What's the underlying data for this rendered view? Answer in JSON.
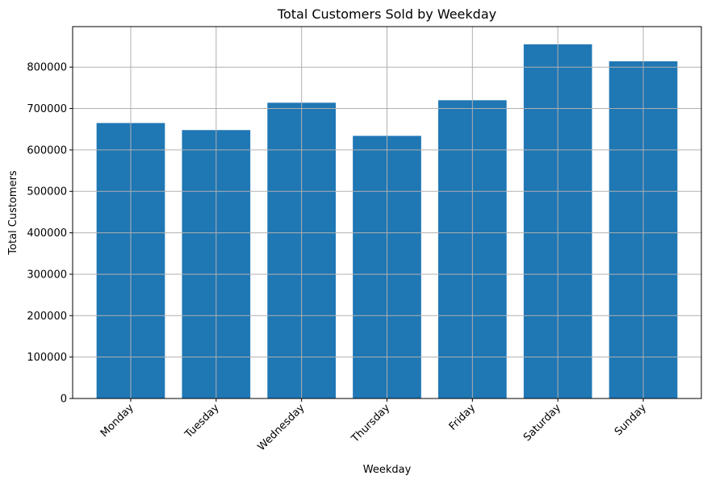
{
  "chart_data": {
    "type": "bar",
    "title": "Total Customers Sold by Weekday",
    "xlabel": "Weekday",
    "ylabel": "Total Customers",
    "categories": [
      "Monday",
      "Tuesday",
      "Wednesday",
      "Thursday",
      "Friday",
      "Saturday",
      "Sunday"
    ],
    "values": [
      665000,
      648000,
      714000,
      634000,
      720000,
      855000,
      814000
    ],
    "ylim": [
      0,
      897750
    ],
    "yticks": [
      0,
      100000,
      200000,
      300000,
      400000,
      500000,
      600000,
      700000,
      800000
    ],
    "ytick_labels": [
      "0",
      "100000",
      "200000",
      "300000",
      "400000",
      "500000",
      "600000",
      "700000",
      "800000"
    ],
    "grid": true,
    "bar_color": "#1f77b4"
  }
}
